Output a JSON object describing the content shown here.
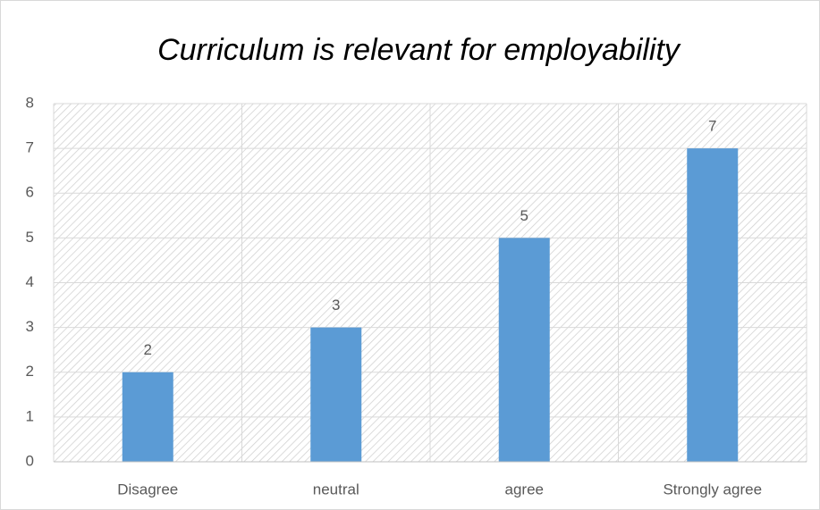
{
  "chart_data": {
    "type": "bar",
    "title": "Curriculum is relevant for employability",
    "categories": [
      "Disagree",
      "neutral",
      "agree",
      "Strongly agree"
    ],
    "values": [
      2,
      3,
      5,
      7
    ],
    "color": "#5b9bd5",
    "ylim": [
      0,
      8
    ],
    "yticks": [
      0,
      1,
      2,
      3,
      4,
      5,
      6,
      7,
      8
    ],
    "grid": true
  }
}
